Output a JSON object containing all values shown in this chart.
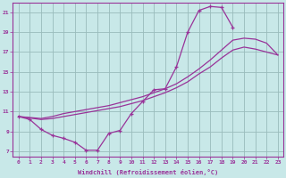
{
  "xlabel": "Windchill (Refroidissement éolien,°C)",
  "xlim": [
    -0.5,
    23.5
  ],
  "ylim": [
    6.5,
    22.0
  ],
  "xticks": [
    0,
    1,
    2,
    3,
    4,
    5,
    6,
    7,
    8,
    9,
    10,
    11,
    12,
    13,
    14,
    15,
    16,
    17,
    18,
    19,
    20,
    21,
    22,
    23
  ],
  "yticks": [
    7,
    9,
    11,
    13,
    15,
    17,
    19,
    21
  ],
  "bg_color": "#c8e8e8",
  "line_color": "#993399",
  "grid_color": "#99bbbb",
  "curves": [
    {
      "x": [
        0,
        1,
        2,
        3,
        4,
        5,
        6,
        7,
        8,
        9,
        10,
        11,
        12,
        13,
        14,
        15,
        16,
        17,
        18,
        19
      ],
      "y": [
        10.5,
        10.2,
        9.2,
        8.6,
        8.3,
        7.9,
        7.1,
        7.1,
        8.8,
        9.1,
        10.8,
        12.0,
        13.2,
        13.3,
        15.5,
        19.0,
        21.2,
        21.6,
        21.5,
        19.5
      ],
      "marker": true
    },
    {
      "x": [
        0,
        2,
        3,
        4,
        5,
        6,
        7,
        8,
        9,
        10,
        11,
        12,
        13,
        14,
        15,
        16,
        17,
        18,
        19,
        20,
        21,
        22,
        23
      ],
      "y": [
        10.5,
        10.3,
        10.5,
        10.8,
        11.0,
        11.2,
        11.4,
        11.6,
        11.9,
        12.2,
        12.5,
        12.9,
        13.3,
        13.8,
        14.5,
        15.3,
        16.2,
        17.2,
        18.2,
        18.4,
        18.3,
        17.9,
        16.7
      ],
      "marker": false
    },
    {
      "x": [
        0,
        2,
        3,
        4,
        5,
        6,
        7,
        8,
        9,
        10,
        11,
        12,
        13,
        14,
        15,
        16,
        17,
        18,
        19,
        20,
        21,
        22,
        23
      ],
      "y": [
        10.5,
        10.2,
        10.3,
        10.5,
        10.7,
        10.9,
        11.1,
        11.3,
        11.5,
        11.8,
        12.1,
        12.5,
        12.9,
        13.4,
        14.0,
        14.8,
        15.5,
        16.4,
        17.2,
        17.5,
        17.3,
        17.0,
        16.7
      ],
      "marker": false
    }
  ]
}
